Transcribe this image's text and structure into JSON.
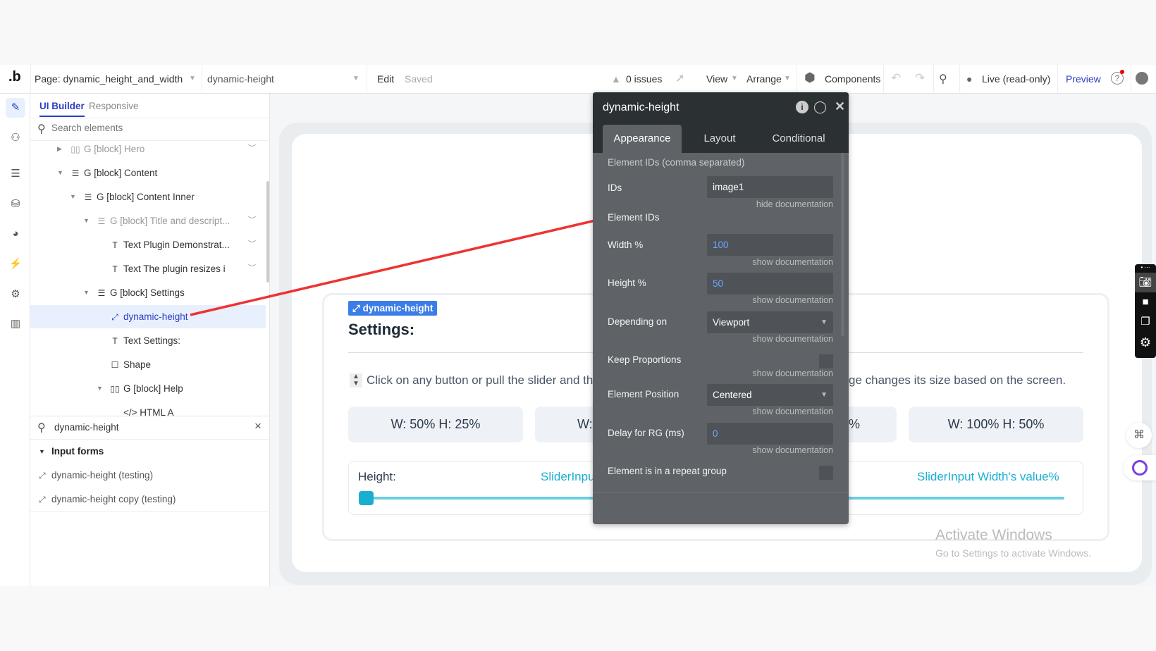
{
  "topbar": {
    "logo": ".b",
    "page": "Page: dynamic_height_and_width",
    "element": "dynamic-height",
    "edit": "Edit",
    "saved": "Saved",
    "issues": "0 issues",
    "view": "View",
    "arrange": "Arrange",
    "components": "Components",
    "live": "Live (read-only)",
    "preview": "Preview",
    "preview_color": "#2c3ec4"
  },
  "panel": {
    "tabs": [
      "UI Builder",
      "Responsive"
    ],
    "search_placeholder": "Search elements",
    "tree": [
      {
        "label": "G [block] Hero",
        "icon": "columns-icon",
        "dim": true
      },
      {
        "label": "G [block] Content",
        "icon": "rows-icon"
      },
      {
        "label": "G [block] Content Inner",
        "icon": "rows-icon"
      },
      {
        "label": "G [block] Title and descript...",
        "icon": "rows-icon",
        "dim": true
      },
      {
        "label": "Text Plugin Demonstrat...",
        "icon": "text-icon"
      },
      {
        "label": "Text The plugin resizes i",
        "icon": "text-icon"
      },
      {
        "label": "G [block] Settings",
        "icon": "rows-icon"
      },
      {
        "label": "dynamic-height",
        "icon": "resize-icon",
        "selected": true
      },
      {
        "label": "Text Settings:",
        "icon": "text-icon"
      },
      {
        "label": "Shape",
        "icon": "square-icon"
      },
      {
        "label": "G [block] Help",
        "icon": "columns-icon"
      },
      {
        "label": "</> HTML A",
        "icon": "html-icon"
      }
    ],
    "filter_value": "dynamic-height",
    "group": "Input forms",
    "results": [
      "dynamic-height (testing)",
      "dynamic-height copy (testing)"
    ]
  },
  "props": {
    "title": "dynamic-height",
    "tabs": [
      "Appearance",
      "Layout",
      "Conditional"
    ],
    "section": "Element IDs (comma separated)",
    "ids_label": "IDs",
    "ids_value": "image1",
    "hide_doc": "hide documentation",
    "doc_text": "Element IDs",
    "show_doc": "show documentation",
    "width_label": "Width %",
    "width_value": "100",
    "height_label": "Height %",
    "height_value": "50",
    "depending_label": "Depending on",
    "depending_value": "Viewport",
    "keep_label": "Keep Proportions",
    "position_label": "Element Position",
    "position_value": "Centered",
    "delay_label": "Delay for RG (ms)",
    "delay_value": "0",
    "repeat_label": "Element is in a repeat group"
  },
  "canvas": {
    "tag": "dynamic-height",
    "heading": "Settings:",
    "instr_left": "Click on any button or pull the slider and the",
    "instr_right": "ge changes its size based on the screen.",
    "btn1": "W: 50% H: 25%",
    "btn2": "W:",
    "btn3": "%",
    "btn4": "W: 100% H: 50%",
    "height_label": "Height:",
    "slider_left": "SliderInpu",
    "slider_right": "SliderInput Width's value%",
    "slider_value": 0,
    "accent": "#1aafd0"
  },
  "watermark": {
    "title": "Activate Windows",
    "sub": "Go to Settings to activate Windows."
  }
}
